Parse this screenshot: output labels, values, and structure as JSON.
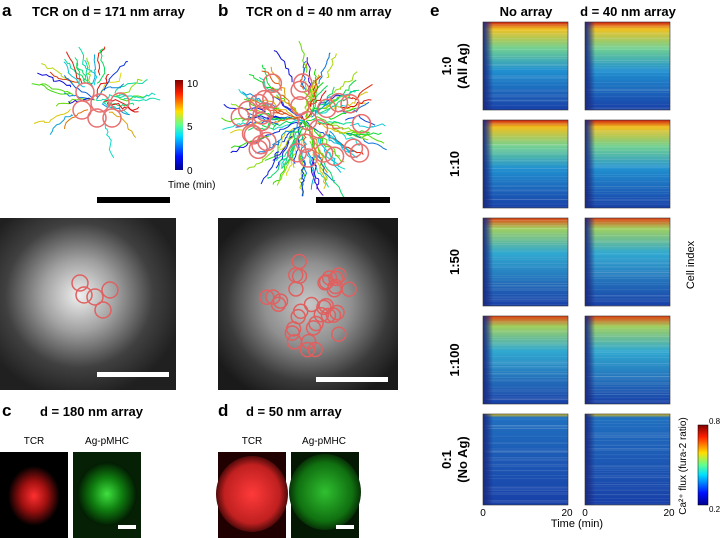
{
  "panels": {
    "a": {
      "letter": "a",
      "title": "TCR on d = 171 nm array",
      "colorbar": {
        "ticks": [
          "10",
          "5",
          "0"
        ],
        "label": "Time (min)"
      }
    },
    "b": {
      "letter": "b",
      "title": "TCR on d = 40 nm array"
    },
    "c": {
      "letter": "c",
      "title": "d = 180 nm array",
      "channels": [
        "TCR",
        "Ag-pMHC"
      ]
    },
    "d": {
      "letter": "d",
      "title": "d = 50 nm array",
      "channels": [
        "TCR",
        "Ag-pMHC"
      ]
    },
    "e": {
      "letter": "e",
      "columns": [
        "No array",
        "d = 40 nm array"
      ],
      "rows": [
        [
          "1:0",
          "(All Ag)"
        ],
        [
          "1:10"
        ],
        [
          "1:50"
        ],
        [
          "1:100"
        ],
        [
          "0:1",
          "(No Ag)"
        ]
      ],
      "x_ticks": [
        "0",
        "20",
        "0",
        "20"
      ],
      "x_label": "Time (min)",
      "y_label": "Cell index",
      "colorbar": {
        "label": "Ca²⁺ flux (fura-2 ratio)",
        "max": "0.8",
        "min": "0.2"
      }
    }
  }
}
